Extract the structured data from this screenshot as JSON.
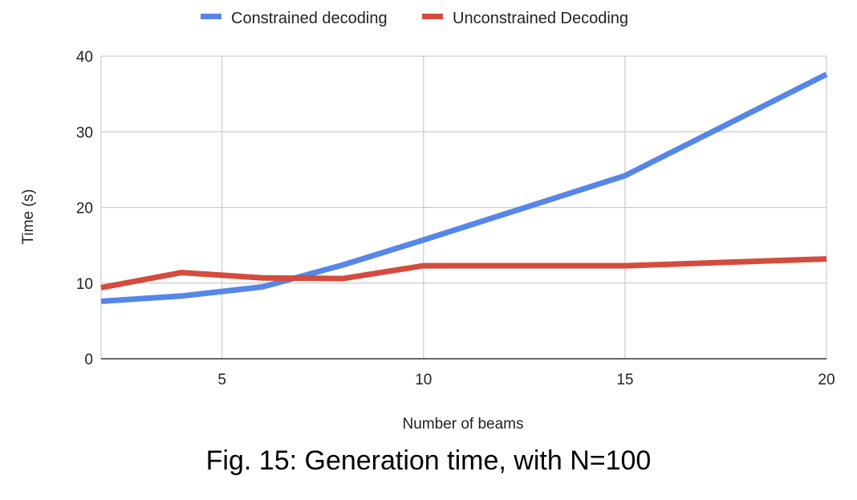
{
  "caption": "Fig. 15: Generation time, with N=100",
  "chart_data": {
    "type": "line",
    "title": "",
    "xlabel": "Number of beams",
    "ylabel": "Time (s)",
    "xlim": [
      2,
      20
    ],
    "ylim": [
      0,
      40
    ],
    "xticks": [
      5,
      10,
      15,
      20
    ],
    "yticks": [
      0,
      10,
      20,
      30,
      40
    ],
    "grid": true,
    "legend_position": "top",
    "series": [
      {
        "name": "Constrained decoding",
        "color": "#5686e8",
        "x": [
          2,
          4,
          6,
          8,
          10,
          15,
          20
        ],
        "y": [
          7.6,
          8.3,
          9.5,
          12.4,
          15.7,
          24.2,
          37.6
        ]
      },
      {
        "name": "Unconstrained Decoding",
        "color": "#d44c3e",
        "x": [
          2,
          4,
          6,
          8,
          10,
          15,
          20
        ],
        "y": [
          9.4,
          11.4,
          10.7,
          10.6,
          12.3,
          12.3,
          13.2
        ]
      }
    ]
  }
}
